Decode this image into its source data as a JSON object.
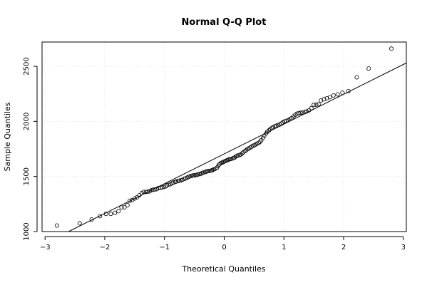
{
  "chart_data": {
    "type": "scatter",
    "title": "Normal Q-Q Plot",
    "xlabel": "Theoretical Quantiles",
    "ylabel": "Sample Quantiles",
    "xlim": [
      -3.05,
      3.05
    ],
    "ylim": [
      1000,
      2720
    ],
    "xticks": [
      -3,
      -2,
      -1,
      0,
      1,
      2,
      3
    ],
    "xtick_labels": [
      "−3",
      "−2",
      "−1",
      "0",
      "1",
      "2",
      "3"
    ],
    "yticks": [
      1000,
      1500,
      2000,
      2500
    ],
    "ytick_labels": [
      "1000",
      "1500",
      "2000",
      "2500"
    ],
    "grid": true,
    "reference_line": {
      "x": [
        -3.05,
        3.05
      ],
      "y": [
        880,
        2530
      ]
    },
    "points": [
      [
        -2.8,
        1055
      ],
      [
        -2.42,
        1075
      ],
      [
        -2.22,
        1110
      ],
      [
        -2.08,
        1140
      ],
      [
        -1.98,
        1160
      ],
      [
        -1.9,
        1160
      ],
      [
        -1.83,
        1170
      ],
      [
        -1.77,
        1185
      ],
      [
        -1.72,
        1220
      ],
      [
        -1.67,
        1220
      ],
      [
        -1.62,
        1240
      ],
      [
        -1.58,
        1280
      ],
      [
        -1.54,
        1285
      ],
      [
        -1.5,
        1300
      ],
      [
        -1.46,
        1310
      ],
      [
        -1.42,
        1330
      ],
      [
        -1.38,
        1350
      ],
      [
        -1.35,
        1360
      ],
      [
        -1.31,
        1360
      ],
      [
        -1.28,
        1362
      ],
      [
        -1.25,
        1365
      ],
      [
        -1.22,
        1375
      ],
      [
        -1.19,
        1380
      ],
      [
        -1.16,
        1382
      ],
      [
        -1.13,
        1385
      ],
      [
        -1.1,
        1395
      ],
      [
        -1.07,
        1398
      ],
      [
        -1.04,
        1400
      ],
      [
        -1.01,
        1405
      ],
      [
        -0.98,
        1410
      ],
      [
        -0.96,
        1420
      ],
      [
        -0.93,
        1425
      ],
      [
        -0.9,
        1430
      ],
      [
        -0.87,
        1440
      ],
      [
        -0.85,
        1445
      ],
      [
        -0.82,
        1450
      ],
      [
        -0.8,
        1455
      ],
      [
        -0.77,
        1460
      ],
      [
        -0.75,
        1462
      ],
      [
        -0.72,
        1465
      ],
      [
        -0.7,
        1470
      ],
      [
        -0.67,
        1478
      ],
      [
        -0.65,
        1482
      ],
      [
        -0.62,
        1490
      ],
      [
        -0.6,
        1495
      ],
      [
        -0.58,
        1500
      ],
      [
        -0.55,
        1505
      ],
      [
        -0.53,
        1508
      ],
      [
        -0.51,
        1510
      ],
      [
        -0.48,
        1512
      ],
      [
        -0.46,
        1515
      ],
      [
        -0.44,
        1518
      ],
      [
        -0.41,
        1522
      ],
      [
        -0.39,
        1525
      ],
      [
        -0.37,
        1530
      ],
      [
        -0.35,
        1535
      ],
      [
        -0.32,
        1540
      ],
      [
        -0.3,
        1545
      ],
      [
        -0.28,
        1548
      ],
      [
        -0.26,
        1550
      ],
      [
        -0.23,
        1552
      ],
      [
        -0.21,
        1555
      ],
      [
        -0.19,
        1560
      ],
      [
        -0.17,
        1565
      ],
      [
        -0.15,
        1570
      ],
      [
        -0.12,
        1580
      ],
      [
        -0.1,
        1595
      ],
      [
        -0.08,
        1610
      ],
      [
        -0.06,
        1620
      ],
      [
        -0.04,
        1625
      ],
      [
        -0.02,
        1630
      ],
      [
        0.0,
        1635
      ],
      [
        0.02,
        1640
      ],
      [
        0.04,
        1645
      ],
      [
        0.06,
        1650
      ],
      [
        0.08,
        1655
      ],
      [
        0.1,
        1658
      ],
      [
        0.12,
        1660
      ],
      [
        0.15,
        1665
      ],
      [
        0.17,
        1670
      ],
      [
        0.19,
        1680
      ],
      [
        0.21,
        1685
      ],
      [
        0.23,
        1690
      ],
      [
        0.26,
        1695
      ],
      [
        0.28,
        1700
      ],
      [
        0.3,
        1710
      ],
      [
        0.32,
        1720
      ],
      [
        0.35,
        1730
      ],
      [
        0.37,
        1740
      ],
      [
        0.39,
        1748
      ],
      [
        0.41,
        1755
      ],
      [
        0.44,
        1762
      ],
      [
        0.46,
        1770
      ],
      [
        0.48,
        1778
      ],
      [
        0.51,
        1785
      ],
      [
        0.53,
        1792
      ],
      [
        0.55,
        1798
      ],
      [
        0.58,
        1805
      ],
      [
        0.6,
        1815
      ],
      [
        0.62,
        1830
      ],
      [
        0.65,
        1850
      ],
      [
        0.67,
        1870
      ],
      [
        0.7,
        1890
      ],
      [
        0.72,
        1905
      ],
      [
        0.75,
        1918
      ],
      [
        0.77,
        1930
      ],
      [
        0.8,
        1940
      ],
      [
        0.82,
        1948
      ],
      [
        0.85,
        1955
      ],
      [
        0.87,
        1960
      ],
      [
        0.9,
        1965
      ],
      [
        0.93,
        1972
      ],
      [
        0.96,
        1980
      ],
      [
        0.98,
        1990
      ],
      [
        1.01,
        2000
      ],
      [
        1.04,
        2005
      ],
      [
        1.07,
        2010
      ],
      [
        1.1,
        2020
      ],
      [
        1.13,
        2030
      ],
      [
        1.16,
        2045
      ],
      [
        1.19,
        2060
      ],
      [
        1.22,
        2070
      ],
      [
        1.25,
        2075
      ],
      [
        1.28,
        2078
      ],
      [
        1.31,
        2080
      ],
      [
        1.35,
        2085
      ],
      [
        1.38,
        2090
      ],
      [
        1.42,
        2100
      ],
      [
        1.46,
        2120
      ],
      [
        1.5,
        2150
      ],
      [
        1.54,
        2150
      ],
      [
        1.58,
        2155
      ],
      [
        1.62,
        2190
      ],
      [
        1.67,
        2200
      ],
      [
        1.72,
        2210
      ],
      [
        1.77,
        2220
      ],
      [
        1.83,
        2235
      ],
      [
        1.9,
        2245
      ],
      [
        1.98,
        2260
      ],
      [
        2.08,
        2275
      ],
      [
        2.22,
        2400
      ],
      [
        2.42,
        2480
      ],
      [
        2.8,
        2660
      ]
    ]
  }
}
